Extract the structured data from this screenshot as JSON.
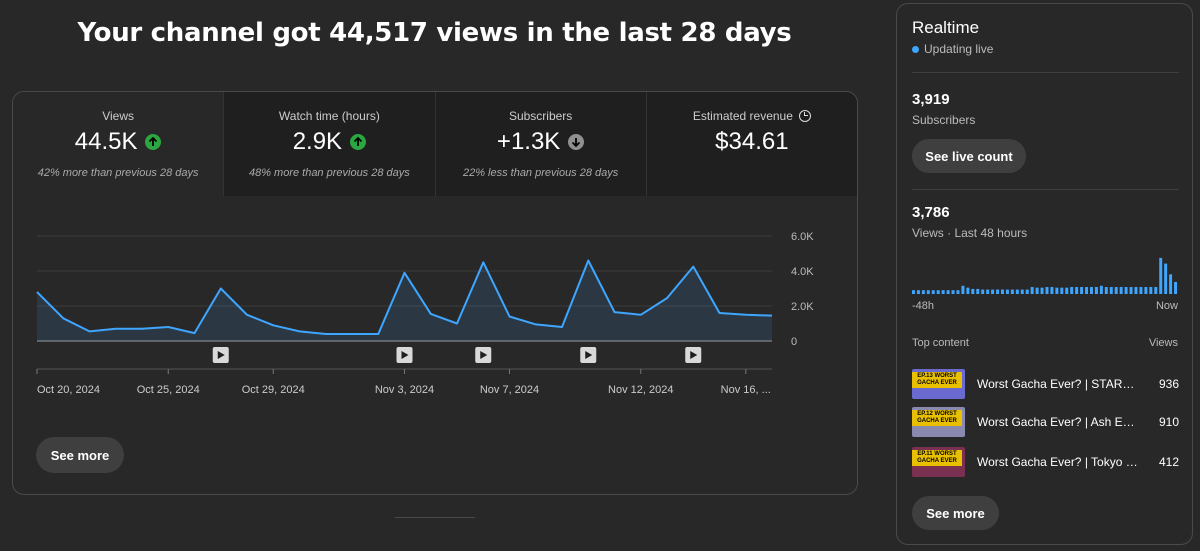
{
  "headline": "Your channel got 44,517 views in the last 28 days",
  "metrics": [
    {
      "label": "Views",
      "value": "44.5K",
      "trend": "up",
      "sub": "42% more than previous 28 days"
    },
    {
      "label": "Watch time (hours)",
      "value": "2.9K",
      "trend": "up",
      "sub": "48% more than previous 28 days"
    },
    {
      "label": "Subscribers",
      "value": "+1.3K",
      "trend": "down",
      "sub": "22% less than previous 28 days"
    },
    {
      "label": "Estimated revenue",
      "value": "$34.61",
      "trend": "",
      "sub": ""
    }
  ],
  "chart_data": {
    "type": "area",
    "title": "Views",
    "x": [
      "Oct 20",
      "Oct 21",
      "Oct 22",
      "Oct 23",
      "Oct 24",
      "Oct 25",
      "Oct 26",
      "Oct 27",
      "Oct 28",
      "Oct 29",
      "Oct 30",
      "Oct 31",
      "Nov 1",
      "Nov 2",
      "Nov 3",
      "Nov 4",
      "Nov 5",
      "Nov 6",
      "Nov 7",
      "Nov 8",
      "Nov 9",
      "Nov 10",
      "Nov 11",
      "Nov 12",
      "Nov 13",
      "Nov 14",
      "Nov 15",
      "Nov 16",
      "Nov 17"
    ],
    "values": [
      2800,
      1300,
      550,
      700,
      700,
      800,
      450,
      3000,
      1500,
      900,
      550,
      400,
      400,
      400,
      3900,
      1550,
      1000,
      4500,
      1400,
      950,
      800,
      4600,
      1650,
      1500,
      2450,
      4250,
      1600,
      1500,
      1450
    ],
    "ylim": [
      0,
      6000
    ],
    "yticks": [
      "6.0K",
      "4.0K",
      "2.0K",
      "0"
    ],
    "xtick_labels": [
      "Oct 20, 2024",
      "Oct 25, 2024",
      "Oct 29, 2024",
      "Nov 3, 2024",
      "Nov 7, 2024",
      "Nov 12, 2024",
      "Nov 16, ..."
    ],
    "xtick_index": [
      0,
      5,
      9,
      14,
      18,
      23,
      27
    ],
    "video_markers": [
      7,
      14,
      17,
      21,
      25
    ],
    "line_color": "#3ea6ff"
  },
  "see_more": "See more",
  "realtime": {
    "title": "Realtime",
    "status": "Updating live",
    "subs_value": "3,919",
    "subs_label": "Subscribers",
    "live_button": "See live count",
    "views_value": "3,786",
    "views_label": "Views · Last 48 hours",
    "axis_start": "-48h",
    "axis_end": "Now",
    "hourly_views": [
      60,
      60,
      60,
      60,
      60,
      60,
      60,
      60,
      60,
      60,
      130,
      100,
      80,
      80,
      70,
      70,
      70,
      70,
      70,
      70,
      70,
      70,
      70,
      70,
      110,
      100,
      100,
      110,
      110,
      100,
      100,
      100,
      110,
      110,
      110,
      110,
      110,
      110,
      130,
      110,
      110,
      110,
      110,
      110,
      110,
      110,
      110,
      110,
      110,
      110,
      570,
      480,
      310,
      190
    ],
    "top_content_label": "Top content",
    "top_views_label": "Views",
    "top_content": [
      {
        "title": "Worst Gacha Ever? | STARSEED Asnia Trigger",
        "views": "936",
        "thumb_text": "EP.13 WORST GACHA EVER",
        "thumb_color": "#6a6ad0"
      },
      {
        "title": "Worst Gacha Ever? | Ash Echoes",
        "views": "910",
        "thumb_text": "EP.12 WORST GACHA EVER",
        "thumb_color": "#8a8ab0"
      },
      {
        "title": "Worst Gacha Ever? | Tokyo Ghoul",
        "views": "412",
        "thumb_text": "EP.11 WORST GACHA EVER",
        "thumb_color": "#7a3050"
      }
    ],
    "see_more": "See more"
  },
  "colors": {
    "accent": "#3ea6ff",
    "up": "#2ba640",
    "down": "#909090",
    "bg": "#282828"
  }
}
